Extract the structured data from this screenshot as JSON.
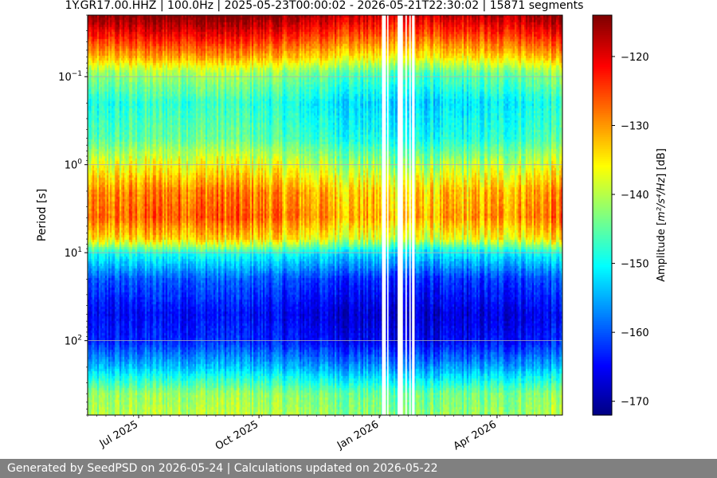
{
  "chart_data": {
    "type": "heatmap",
    "title": "1Y.GR17.00.HHZ | 100.0Hz | 2025-05-23T00:00:02 - 2026-05-21T22:30:02 | 15871 segments",
    "xlabel": "",
    "ylabel": "Period [s]",
    "x_range": [
      "2025-05-23",
      "2026-05-21"
    ],
    "x_ticks": [
      "Jul 2025",
      "Oct 2025",
      "Jan 2026",
      "Apr 2026"
    ],
    "x_tick_dates": [
      "2025-07-01",
      "2025-10-01",
      "2026-01-01",
      "2026-04-01"
    ],
    "y_scale": "log",
    "y_inverted": true,
    "y_range": [
      0.02,
      700
    ],
    "y_ticks": [
      {
        "base": "10",
        "exp": "−1",
        "value": 0.1
      },
      {
        "base": "10",
        "exp": "0",
        "value": 1
      },
      {
        "base": "10",
        "exp": "1",
        "value": 10
      },
      {
        "base": "10",
        "exp": "2",
        "value": 100
      }
    ],
    "grid": true,
    "colormap": "jet",
    "colorbar": {
      "label_prefix": "Amplitude [",
      "label_math": "m²/s⁴/Hz",
      "label_suffix": "] [dB]",
      "range": [
        -172,
        -114
      ],
      "ticks": [
        "−120",
        "−130",
        "−140",
        "−150",
        "−160",
        "−170"
      ],
      "tick_values": [
        -120,
        -130,
        -140,
        -150,
        -160,
        -170
      ]
    },
    "period_profile_db": [
      {
        "period": 0.02,
        "db": -116
      },
      {
        "period": 0.035,
        "db": -124
      },
      {
        "period": 0.06,
        "db": -133
      },
      {
        "period": 0.09,
        "db": -143
      },
      {
        "period": 0.2,
        "db": -150
      },
      {
        "period": 0.5,
        "db": -147
      },
      {
        "period": 1.0,
        "db": -139
      },
      {
        "period": 2.0,
        "db": -131
      },
      {
        "period": 4.0,
        "db": -129
      },
      {
        "period": 7.0,
        "db": -136
      },
      {
        "period": 10.0,
        "db": -150
      },
      {
        "period": 20.0,
        "db": -161
      },
      {
        "period": 50.0,
        "db": -166
      },
      {
        "period": 100.0,
        "db": -164
      },
      {
        "period": 200.0,
        "db": -155
      },
      {
        "period": 400.0,
        "db": -143
      },
      {
        "period": 700.0,
        "db": -141
      }
    ],
    "data_gaps": [
      [
        "2026-01-03",
        "2026-01-06"
      ],
      [
        "2026-01-07",
        "2026-01-08"
      ],
      [
        "2026-01-15",
        "2026-01-19"
      ],
      [
        "2026-01-21",
        "2026-01-22"
      ],
      [
        "2026-01-24",
        "2026-01-25"
      ],
      [
        "2026-01-26",
        "2026-01-28"
      ]
    ]
  },
  "footer": {
    "text": "Generated by SeedPSD on 2026-05-24 | Calculations updated on 2026-05-22"
  }
}
